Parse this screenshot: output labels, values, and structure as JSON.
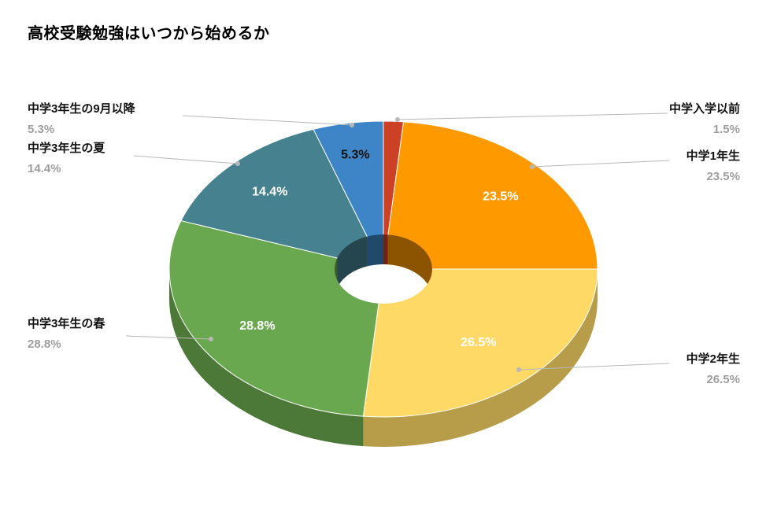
{
  "chart_data": {
    "type": "pie",
    "style": "3d-donut",
    "title": "高校受験勉強はいつから始めるか",
    "legend_position": "labeled-callouts",
    "total": 100,
    "background": "#ffffff",
    "slices": [
      {
        "label": "中学入学以前",
        "value": 1.5,
        "pct": "1.5%",
        "color": "#cc4125"
      },
      {
        "label": "中学1年生",
        "value": 23.5,
        "pct": "23.5%",
        "color": "#ff9900"
      },
      {
        "label": "中学2年生",
        "value": 26.5,
        "pct": "26.5%",
        "color": "#ffd966"
      },
      {
        "label": "中学3年生の春",
        "value": 28.8,
        "pct": "28.8%",
        "color": "#6aa84f"
      },
      {
        "label": "中学3年生の夏",
        "value": 14.4,
        "pct": "14.4%",
        "color": "#45818e"
      },
      {
        "label": "中学3年生の9月以降",
        "value": 5.3,
        "pct": "5.3%",
        "color": "#3d85c6"
      }
    ]
  }
}
